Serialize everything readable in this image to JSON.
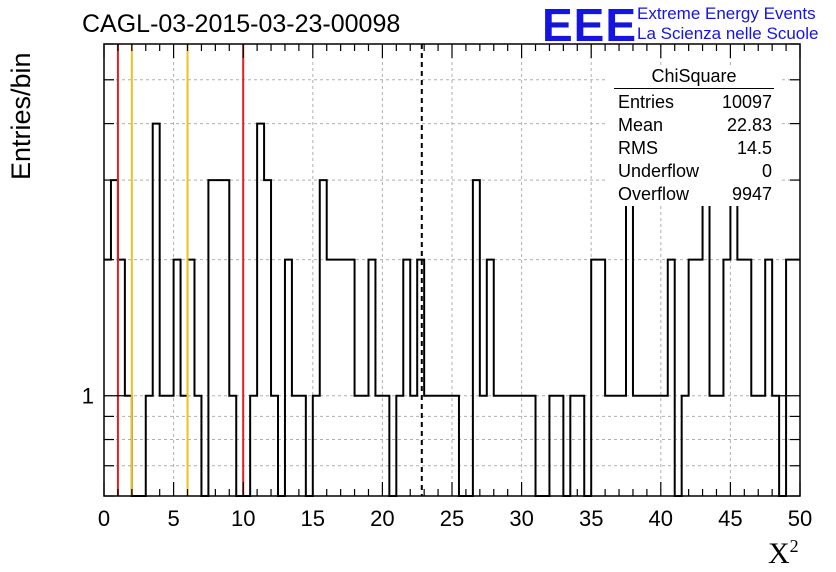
{
  "title": "CAGL-03-2015-03-23-00098",
  "logo": {
    "mark": "EEE",
    "line1": "Extreme Energy Events",
    "line2": "La Scienza nelle Scuole",
    "color": "#1515e0"
  },
  "axes": {
    "ylabel": "Entries/bin",
    "xlabel_base": "X",
    "xlabel_sup": "2"
  },
  "stats_box": {
    "title": "ChiSquare",
    "rows": [
      {
        "label": "Entries",
        "value": "10097"
      },
      {
        "label": "Mean",
        "value": "22.83"
      },
      {
        "label": "RMS",
        "value": "14.5"
      },
      {
        "label": "Underflow",
        "value": "0"
      },
      {
        "label": "Overflow",
        "value": "9947"
      }
    ]
  },
  "chart_data": {
    "type": "histogram",
    "title": "CAGL-03-2015-03-23-00098",
    "xlabel": "X^2",
    "ylabel": "Entries/bin",
    "xlim": [
      0,
      50
    ],
    "ylim": [
      0.6,
      6
    ],
    "y_scale": "log",
    "bin_width": 0.5,
    "grid": true,
    "x_tick_labels": [
      "0",
      "5",
      "10",
      "15",
      "20",
      "25",
      "30",
      "35",
      "40",
      "45",
      "50"
    ],
    "y_tick_labels": [
      "1"
    ],
    "values": [
      2,
      3,
      2,
      1,
      0,
      0,
      1,
      4,
      1,
      1,
      2,
      1,
      2,
      1,
      0,
      3,
      3,
      3,
      1,
      0,
      0,
      1,
      4,
      3,
      1,
      0,
      2,
      1,
      1,
      0,
      1,
      3,
      2,
      2,
      2,
      2,
      1,
      1,
      2,
      1,
      1,
      0,
      1,
      2,
      1,
      2,
      1,
      1,
      1,
      1,
      1,
      0,
      0,
      3,
      1,
      2,
      1,
      1,
      1,
      1,
      1,
      1,
      0,
      0,
      1,
      1,
      0,
      1,
      1,
      0,
      2,
      2,
      1,
      1,
      1,
      4,
      1,
      1,
      1,
      1,
      1,
      2,
      0,
      1,
      2,
      2,
      3,
      1,
      1,
      2,
      3,
      2,
      2,
      1,
      1,
      2,
      1,
      0,
      2,
      2
    ],
    "vertical_lines": [
      {
        "x": 1,
        "color": "#e02020",
        "style": "solid"
      },
      {
        "x": 2,
        "color": "#f0c020",
        "style": "solid"
      },
      {
        "x": 6,
        "color": "#f0c020",
        "style": "solid"
      },
      {
        "x": 10,
        "color": "#e02020",
        "style": "solid"
      },
      {
        "x": 22.83,
        "color": "#000000",
        "style": "dashed"
      }
    ],
    "line_color": "#000000"
  }
}
